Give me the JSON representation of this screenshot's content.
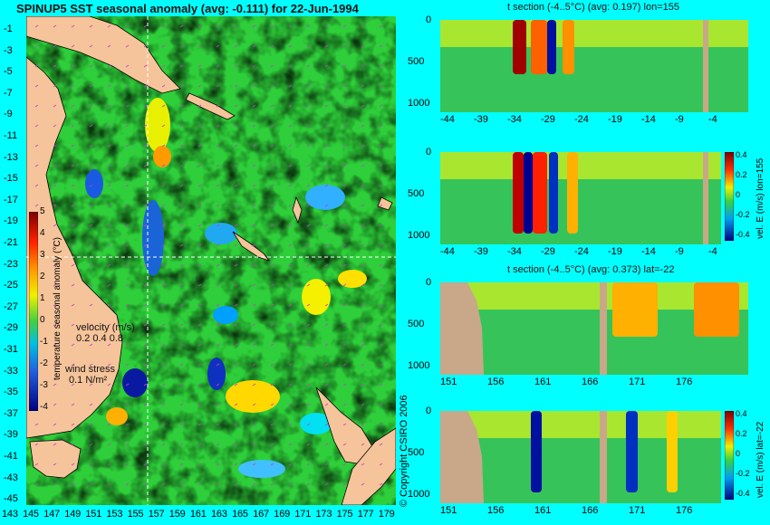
{
  "main_map": {
    "title": "SPINUP5 SST seasonal anomaly (avg: -0.111) for 22-Jun-1994",
    "lat_ticks": [
      "-1",
      "-3",
      "-5",
      "-7",
      "-9",
      "-11",
      "-13",
      "-15",
      "-17",
      "-19",
      "-21",
      "-23",
      "-25",
      "-27",
      "-29",
      "-31",
      "-33",
      "-35",
      "-37",
      "-39",
      "-41",
      "-43",
      "-45"
    ],
    "lon_ticks": [
      "143",
      "145",
      "147",
      "149",
      "151",
      "153",
      "155",
      "157",
      "159",
      "161",
      "163",
      "165",
      "167",
      "169",
      "171",
      "173",
      "175",
      "177",
      "179"
    ],
    "colorbar": {
      "label": "temperature seasonal anomaly (°C)",
      "ticks": [
        "5",
        "4",
        "3",
        "2",
        "1",
        "0",
        "-1",
        "-2",
        "-3",
        "-4"
      ]
    },
    "velocity_legend": {
      "title": "velocity (m/s)",
      "values": "0.2 0.4 0.8"
    },
    "wind_legend": {
      "title": "wind stress",
      "value": "0.1 N/m²"
    },
    "copyright": "© Copyright CSIRO 2006"
  },
  "sections": [
    {
      "title": "t section (-4..5°C) (avg: 0.197) lon=155",
      "x_ticks": [
        "-44",
        "-39",
        "-34",
        "-29",
        "-24",
        "-19",
        "-14",
        "-9",
        "-4"
      ],
      "y_ticks": [
        "0",
        "500",
        "1000"
      ]
    },
    {
      "title": "",
      "x_ticks": [
        "-44",
        "-39",
        "-34",
        "-29",
        "-24",
        "-19",
        "-14",
        "-9",
        "-4"
      ],
      "y_ticks": [
        "0",
        "500",
        "1000"
      ],
      "colorbar_label": "vel. E (m/s) lon=155",
      "colorbar_ticks": [
        "0.4",
        "0.2",
        "0",
        "-0.2",
        "-0.4"
      ]
    },
    {
      "title": "t section (-4..5°C) (avg: 0.373) lat=-22",
      "x_ticks": [
        "151",
        "156",
        "161",
        "166",
        "171",
        "176"
      ],
      "y_ticks": [
        "0",
        "500",
        "1000"
      ]
    },
    {
      "title": "",
      "x_ticks": [
        "151",
        "156",
        "161",
        "166",
        "171",
        "176"
      ],
      "y_ticks": [
        "0",
        "500",
        "1000"
      ],
      "colorbar_label": "vel. E (m/s) lat=-22",
      "colorbar_ticks": [
        "0.4",
        "0.2",
        "0",
        "-0.2",
        "-0.4"
      ]
    }
  ],
  "chart_data": [
    {
      "type": "heatmap",
      "title": "SPINUP5 SST seasonal anomaly (avg: -0.111) for 22-Jun-1994",
      "xlabel": "",
      "ylabel": "",
      "x_range": [
        142,
        180
      ],
      "y_range": [
        -45,
        0
      ],
      "colorbar_range": [
        -4,
        5
      ],
      "colorbar_label": "temperature seasonal anomaly (°C)",
      "average": -0.111,
      "date": "22-Jun-1994",
      "section_lines": {
        "lon": 155,
        "lat": -22
      }
    },
    {
      "type": "heatmap",
      "title": "t section (-4..5°C) (avg: 0.197) lon=155",
      "x_range": [
        -45,
        -1
      ],
      "y_range": [
        1050,
        0
      ],
      "average": 0.197
    },
    {
      "type": "heatmap",
      "title": "",
      "colorbar_label": "vel. E (m/s) lon=155",
      "x_range": [
        -45,
        -1
      ],
      "y_range": [
        1050,
        0
      ],
      "colorbar_range": [
        -0.4,
        0.4
      ]
    },
    {
      "type": "heatmap",
      "title": "t section (-4..5°C) (avg: 0.373) lat=-22",
      "x_range": [
        150,
        180
      ],
      "y_range": [
        1050,
        0
      ],
      "average": 0.373
    },
    {
      "type": "heatmap",
      "title": "",
      "colorbar_label": "vel. E (m/s) lat=-22",
      "x_range": [
        150,
        180
      ],
      "y_range": [
        1050,
        0
      ],
      "colorbar_range": [
        -0.4,
        0.4
      ]
    }
  ]
}
